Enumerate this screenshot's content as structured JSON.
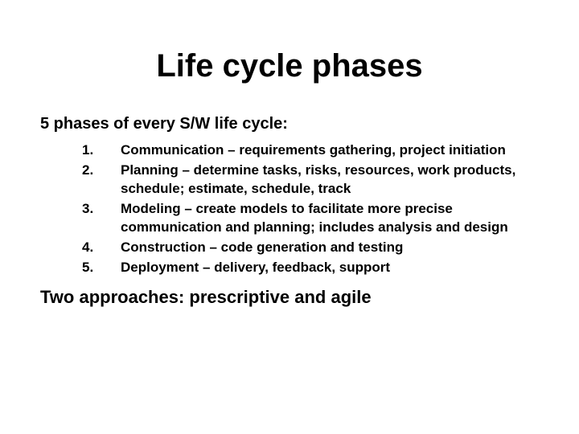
{
  "title": "Life cycle phases",
  "subtitle": "5 phases of every S/W life cycle:",
  "items": [
    {
      "num": "1.",
      "text": "Communication – requirements gathering, project initiation"
    },
    {
      "num": "2.",
      "text": "Planning – determine tasks, risks, resources, work products, schedule; estimate, schedule, track"
    },
    {
      "num": "3.",
      "text": "Modeling – create models to facilitate more precise communication and planning; includes analysis and design"
    },
    {
      "num": "4.",
      "text": "Construction – code generation and testing"
    },
    {
      "num": "5.",
      "text": "Deployment – delivery, feedback, support"
    }
  ],
  "footer": "Two approaches:  prescriptive and agile",
  "style": {
    "background_color": "#ffffff",
    "text_color": "#000000",
    "title_fontsize": 40,
    "subtitle_fontsize": 20,
    "item_fontsize": 17,
    "footer_fontsize": 22,
    "font_family": "Arial"
  }
}
